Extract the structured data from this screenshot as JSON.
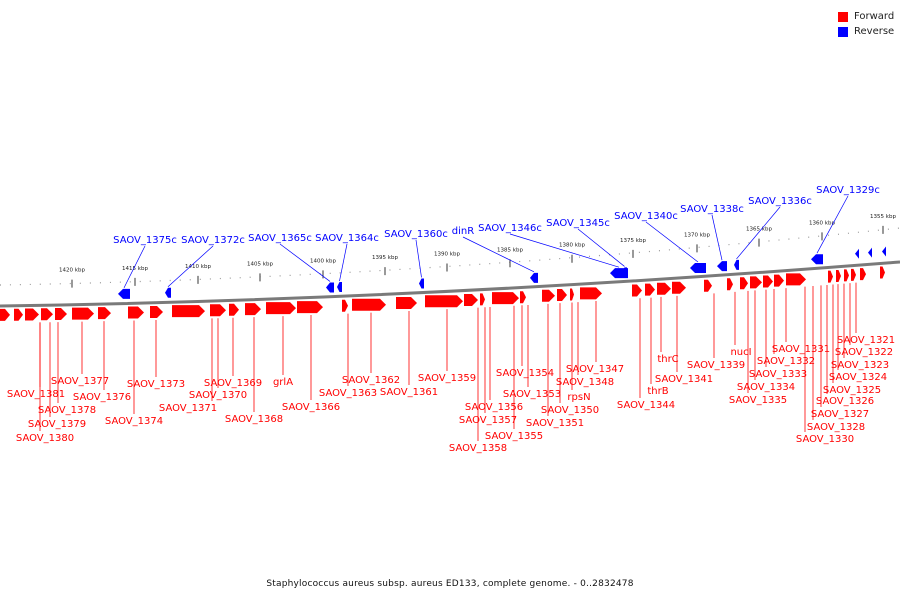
{
  "legend": {
    "forward_label": "Forward",
    "reverse_label": "Reverse",
    "forward_color": "#ff0000",
    "reverse_color": "#0000ff"
  },
  "caption": "Staphylococcus aureus subsp. aureus ED133, complete genome. - 0..2832478",
  "scale_labels": [
    "1420 kbp",
    "1415 kbp",
    "1410 kbp",
    "1405 kbp",
    "1400 kbp",
    "1395 kbp",
    "1390 kbp",
    "1385 kbp",
    "1380 kbp",
    "1375 kbp",
    "1370 kbp",
    "1365 kbp",
    "1360 kbp",
    "1355 kbp"
  ],
  "reverse_genes": [
    "SAOV_1375c",
    "SAOV_1372c",
    "SAOV_1365c",
    "SAOV_1364c",
    "SAOV_1360c",
    "dinR",
    "SAOV_1346c",
    "SAOV_1345c",
    "SAOV_1340c",
    "SAOV_1338c",
    "SAOV_1336c",
    "SAOV_1329c"
  ],
  "forward_genes": [
    "SAOV_1381",
    "SAOV_1380",
    "SAOV_1379",
    "SAOV_1378",
    "SAOV_1377",
    "SAOV_1376",
    "SAOV_1374",
    "SAOV_1373",
    "SAOV_1371",
    "SAOV_1370",
    "SAOV_1369",
    "SAOV_1368",
    "grlA",
    "SAOV_1366",
    "SAOV_1363",
    "SAOV_1362",
    "SAOV_1361",
    "SAOV_1359",
    "SAOV_1358",
    "SAOV_1357",
    "SAOV_1356",
    "SAOV_1355",
    "SAOV_1354",
    "SAOV_1353",
    "SAOV_1351",
    "SAOV_1350",
    "rpsN",
    "SAOV_1348",
    "SAOV_1347",
    "SAOV_1344",
    "thrB",
    "thrC",
    "SAOV_1341",
    "SAOV_1339",
    "nucI",
    "SAOV_1335",
    "SAOV_1334",
    "SAOV_1333",
    "SAOV_1332",
    "SAOV_1331",
    "SAOV_1330",
    "SAOV_1328",
    "SAOV_1327",
    "SAOV_1326",
    "SAOV_1325",
    "SAOV_1324",
    "SAOV_1323",
    "SAOV_1322",
    "SAOV_1321"
  ]
}
